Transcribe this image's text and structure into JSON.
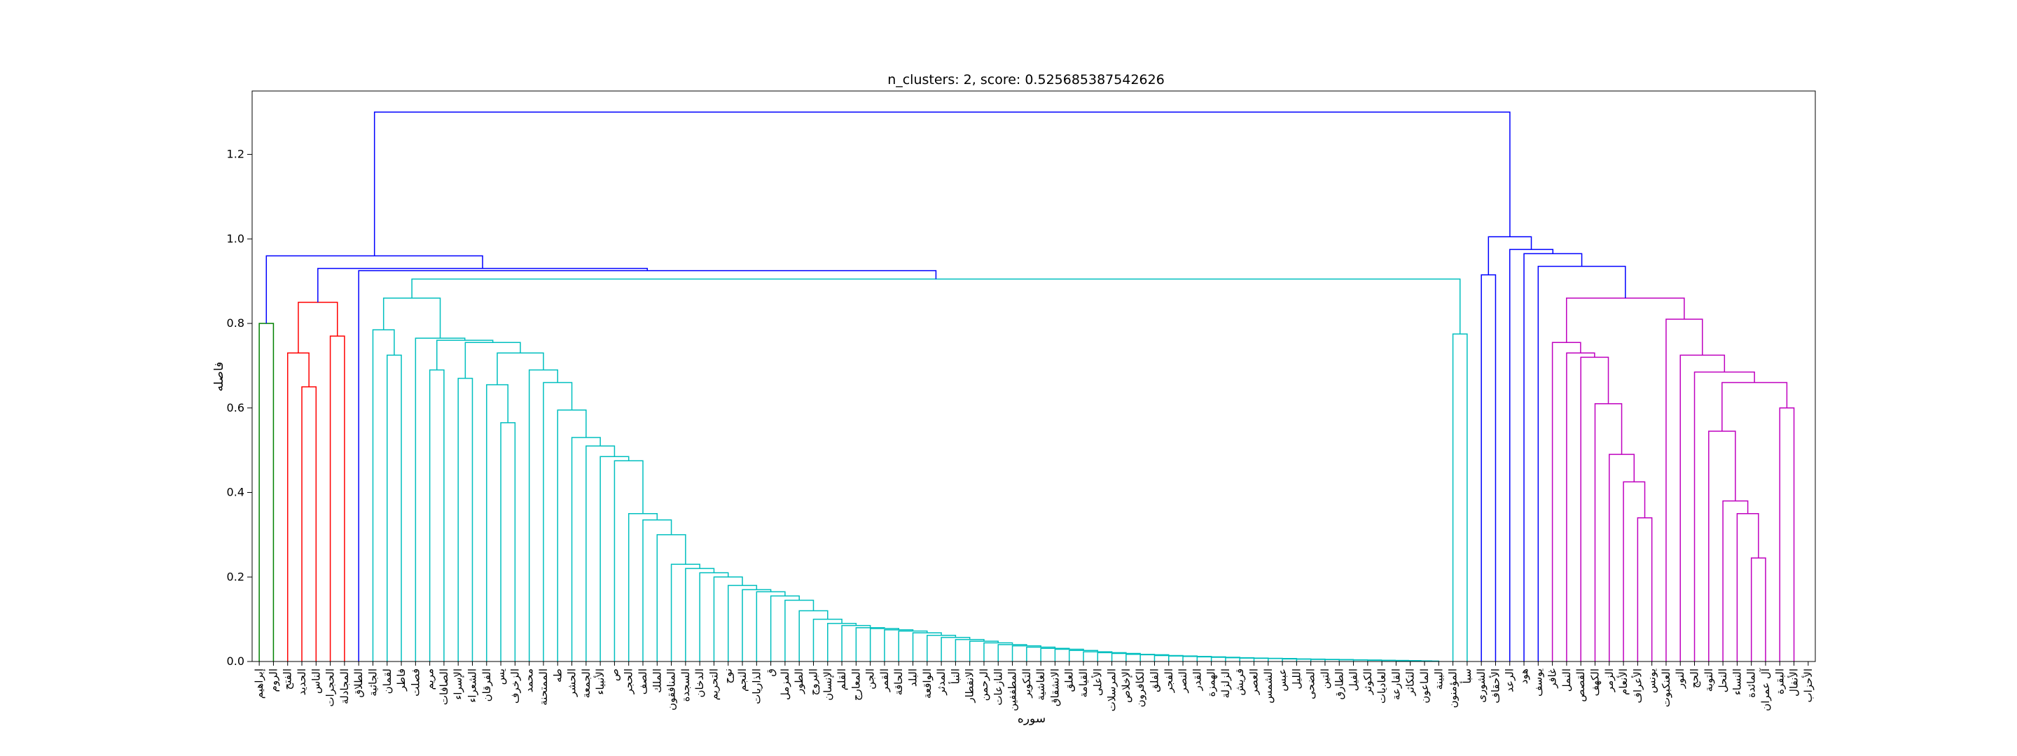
{
  "chart_data": {
    "type": "dendrogram",
    "title": "n_clusters: 2, score: 0.525685387542626",
    "xlabel": "سوره",
    "ylabel": "فاصله",
    "ylim": [
      0,
      1.35
    ],
    "yticks": [
      "0.0",
      "0.2",
      "0.4",
      "0.6",
      "0.8",
      "1.0",
      "1.2"
    ],
    "ytick_values": [
      0.0,
      0.2,
      0.4,
      0.6,
      0.8,
      1.0,
      1.2
    ],
    "grid": false,
    "legend": "none",
    "colors": {
      "above_threshold": "#0000ff",
      "green": "#008000",
      "red": "#ff0000",
      "cyan": "#00bfbf",
      "magenta": "#bf00bf"
    },
    "leaves": [
      "إبراهيم",
      "الروم",
      "الفتح",
      "الحديد",
      "الناس",
      "الحجرات",
      "المجادلة",
      "الطلاق",
      "الجاثية",
      "لقمان",
      "فاطر",
      "فصلت",
      "مريم",
      "الصافات",
      "الإسراء",
      "الشعراء",
      "الفرقان",
      "يس",
      "الزخرف",
      "محمد",
      "الممتحنة",
      "طه",
      "الحشر",
      "الجمعة",
      "الأنبياء",
      "ص",
      "الحجر",
      "الصف",
      "الملك",
      "المنافقون",
      "السجدة",
      "الدخان",
      "التحريم",
      "نوح",
      "النجم",
      "الذاريات",
      "ق",
      "المزمل",
      "الطور",
      "البروج",
      "الإنسان",
      "القلم",
      "المعارج",
      "الجن",
      "القمر",
      "الحاقة",
      "البلد",
      "الواقعة",
      "المدثر",
      "النبأ",
      "الانفطار",
      "الرحمن",
      "النازعات",
      "المطففين",
      "التكوير",
      "الغاشية",
      "الانشقاق",
      "العلق",
      "القيامة",
      "الأعلى",
      "المرسلات",
      "الإخلاص",
      "الكافرون",
      "الفلق",
      "الفجر",
      "النصر",
      "القدر",
      "الهمزة",
      "الزلزلة",
      "قريش",
      "العصر",
      "الشمس",
      "عبس",
      "الليل",
      "الضحى",
      "التين",
      "الطارق",
      "الفيل",
      "الكوثر",
      "العاديات",
      "القارعة",
      "التكاثر",
      "الماعون",
      "البينة",
      "المؤمنون",
      "سبأ",
      "الشورى",
      "الأحقاف",
      "الرعد",
      "هود",
      "يوسف",
      "غافر",
      "النمل",
      "القصص",
      "الكهف",
      "الزمر",
      "الأنعام",
      "الأعراف",
      "يونس",
      "العنكبوت",
      "النور",
      "الحج",
      "التوبة",
      "النحل",
      "النساء",
      "المائدة",
      "آل عمران",
      "البقرة",
      "الأنفال",
      "الأحزاب"
    ],
    "merges": [
      {
        "a": [
          24,
          "L"
        ],
        "b": [
          25,
          "L"
        ],
        "h": 0.482,
        "c": "cyan"
      },
      {
        "a": [
          -1,
          "M"
        ],
        "b": [
          26,
          "L"
        ],
        "h": 0.475,
        "c": "cyan"
      },
      {
        "a": [
          23,
          "L"
        ],
        "b": [
          -1,
          "M"
        ],
        "h": 0.48,
        "c": "cyan"
      },
      {
        "a": [
          22,
          "L"
        ],
        "b": [
          -1,
          "M"
        ],
        "h": 0.51,
        "c": "cyan"
      },
      {
        "a": [
          21,
          "L"
        ],
        "b": [
          -1,
          "M"
        ],
        "h": 0.53,
        "c": "cyan"
      },
      {
        "a": [
          20,
          "L"
        ],
        "b": [
          -1,
          "M"
        ],
        "h": 0.595,
        "c": "cyan"
      },
      {
        "a": [
          19,
          "L"
        ],
        "b": [
          -1,
          "M"
        ],
        "h": 0.66,
        "c": "cyan"
      },
      {
        "a": [
          18,
          "L"
        ],
        "b": [
          -1,
          "M"
        ],
        "h": 0.69,
        "c": "cyan"
      }
    ],
    "tree": {
      "h": 1.3,
      "c": "blue",
      "left": {
        "h": 0.96,
        "c": "blue",
        "left": {
          "h": 0.8,
          "c": "green",
          "left": {
            "leaf": 0
          },
          "right": {
            "leaf": 1
          }
        },
        "right": {
          "h": 0.93,
          "c": "blue",
          "left": {
            "h": 0.85,
            "c": "red",
            "left": {
              "h": 0.73,
              "c": "red",
              "left": {
                "leaf": 2
              },
              "right": {
                "h": 0.65,
                "c": "red",
                "left": {
                  "leaf": 3
                },
                "right": {
                  "leaf": 4
                }
              }
            },
            "right": {
              "h": 0.77,
              "c": "red",
              "left": {
                "leaf": 5
              },
              "right": {
                "leaf": 6
              }
            }
          },
          "right": {
            "h": 0.925,
            "c": "blue",
            "left": {
              "leaf": 7
            },
            "right": {
              "h": 0.905,
              "c": "cyan",
              "left": {
                "h": 0.86,
                "c": "cyan",
                "left": {
                  "h": 0.785,
                  "c": "cyan",
                  "left": {
                    "leaf": 8
                  },
                  "right": {
                    "h": 0.725,
                    "c": "cyan",
                    "left": {
                      "leaf": 9
                    },
                    "right": {
                      "leaf": 10
                    }
                  }
                },
                "right": {
                  "h": 0.765,
                  "c": "cyan",
                  "left": {
                    "leaf": 11
                  },
                  "right": {
                    "h": 0.76,
                    "c": "cyan",
                    "left": {
                      "h": 0.69,
                      "c": "cyan",
                      "left": {
                        "leaf": 12
                      },
                      "right": {
                        "leaf": 13
                      }
                    },
                    "right": {
                      "h": 0.755,
                      "c": "cyan",
                      "left": {
                        "h": 0.67,
                        "c": "cyan",
                        "left": {
                          "leaf": 14
                        },
                        "right": {
                          "leaf": 15
                        }
                      },
                      "right": {
                        "h": 0.73,
                        "c": "cyan",
                        "left": {
                          "h": 0.655,
                          "c": "cyan",
                          "left": {
                            "leaf": 16
                          },
                          "right": {
                            "h": 0.565,
                            "c": "cyan",
                            "left": {
                              "leaf": 17
                            },
                            "right": {
                              "leaf": 18
                            }
                          }
                        },
                        "right": {
                          "h": 0.69,
                          "c": "cyan",
                          "left": {
                            "leaf": 19
                          },
                          "right": {
                            "h": 0.66,
                            "c": "cyan",
                            "left": {
                              "leaf": 20
                            },
                            "right": {
                              "h": 0.595,
                              "c": "cyan",
                              "left": {
                                "leaf": 21
                              },
                              "right": {
                                "h": 0.53,
                                "c": "cyan",
                                "left": {
                                  "leaf": 22
                                },
                                "right": {
                                  "h": 0.51,
                                  "c": "cyan",
                                  "left": {
                                    "leaf": 23
                                  },
                                  "right": {
                                    "h": 0.485,
                                    "c": "cyan",
                                    "left": {
                                      "leaf": 24
                                    },
                                    "right": {
                                      "h": 0.475,
                                      "c": "cyan",
                                      "left": {
                                        "leaf": 25
                                      },
                                      "right": {
                                        "chain": [
                                          26,
                                          84
                                        ],
                                        "heights": [
                                          0.38,
                                          0.35,
                                          0.335,
                                          0.3,
                                          0.23,
                                          0.22,
                                          0.21,
                                          0.2,
                                          0.18,
                                          0.17,
                                          0.165,
                                          0.155,
                                          0.145,
                                          0.12,
                                          0.1,
                                          0.09,
                                          0.085,
                                          0.08,
                                          0.078,
                                          0.075,
                                          0.072,
                                          0.068,
                                          0.062,
                                          0.057,
                                          0.052,
                                          0.048,
                                          0.044,
                                          0.04,
                                          0.037,
                                          0.034,
                                          0.031,
                                          0.029,
                                          0.026,
                                          0.023,
                                          0.021,
                                          0.019,
                                          0.017,
                                          0.016,
                                          0.014,
                                          0.013,
                                          0.012,
                                          0.011,
                                          0.01,
                                          0.009,
                                          0.008,
                                          0.0075,
                                          0.007,
                                          0.006,
                                          0.0055,
                                          0.005,
                                          0.0045,
                                          0.004,
                                          0.0035,
                                          0.003,
                                          0.0025,
                                          0.002,
                                          0.0015,
                                          0.001
                                        ],
                                        "c": "cyan"
                                      }
                                    }
                                  }
                                }
                              }
                            }
                          }
                        }
                      }
                    }
                  }
                }
              },
              "right": {
                "h": 0.775,
                "c": "cyan",
                "left": {
                  "leaf": 84
                },
                "right": {
                  "leaf": 85
                }
              }
            }
          }
        }
      },
      "right": {
        "h": 1.005,
        "c": "blue",
        "left": {
          "h": 0.915,
          "c": "blue",
          "left": {
            "leaf": 86
          },
          "right": {
            "leaf": 87
          }
        },
        "right": {
          "h": 0.975,
          "c": "blue",
          "left": {
            "leaf": 88
          },
          "right": {
            "h": 0.965,
            "c": "blue",
            "left": {
              "leaf": 89
            },
            "right": {
              "h": 0.935,
              "c": "blue",
              "left": {
                "leaf": 90
              },
              "right": {
                "h": 0.86,
                "c": "magenta",
                "left": {
                  "h": 0.755,
                  "c": "magenta",
                  "left": {
                    "leaf": 91
                  },
                  "right": {
                    "h": 0.73,
                    "c": "magenta",
                    "left": {
                      "leaf": 92
                    },
                    "right": {
                      "h": 0.72,
                      "c": "magenta",
                      "left": {
                        "leaf": 93
                      },
                      "right": {
                        "h": 0.61,
                        "c": "magenta",
                        "left": {
                          "leaf": 94
                        },
                        "right": {
                          "h": 0.49,
                          "c": "magenta",
                          "left": {
                            "leaf": 95
                          },
                          "right": {
                            "h": 0.425,
                            "c": "magenta",
                            "left": {
                              "leaf": 96
                            },
                            "right": {
                              "h": 0.34,
                              "c": "magenta",
                              "left": {
                                "leaf": 97
                              },
                              "right": {
                                "leaf": 98
                              }
                            }
                          }
                        }
                      }
                    }
                  }
                },
                "right": {
                  "h": 0.81,
                  "c": "magenta",
                  "left": {
                    "leaf": 99
                  },
                  "right": {
                    "h": 0.725,
                    "c": "magenta",
                    "left": {
                      "leaf": 100
                    },
                    "right": {
                      "h": 0.685,
                      "c": "magenta",
                      "left": {
                        "leaf": 101
                      },
                      "right": {
                        "h": 0.66,
                        "c": "magenta",
                        "left": {
                          "h": 0.545,
                          "c": "magenta",
                          "left": {
                            "leaf": 102
                          },
                          "right": {
                            "h": 0.38,
                            "c": "magenta",
                            "left": {
                              "leaf": 103
                            },
                            "right": {
                              "h": 0.35,
                              "c": "magenta",
                              "left": {
                                "leaf": 104
                              },
                              "right": {
                                "h": 0.245,
                                "c": "magenta",
                                "left": {
                                  "leaf": 105
                                },
                                "right": {
                                  "leaf": 106
                                }
                              }
                            }
                          }
                        },
                        "right": {
                          "h": 0.6,
                          "c": "magenta",
                          "left": {
                            "leaf": 107
                          },
                          "right": {
                            "leaf": 108
                          }
                        }
                      }
                    }
                  }
                }
              }
            }
          }
        }
      }
    }
  }
}
